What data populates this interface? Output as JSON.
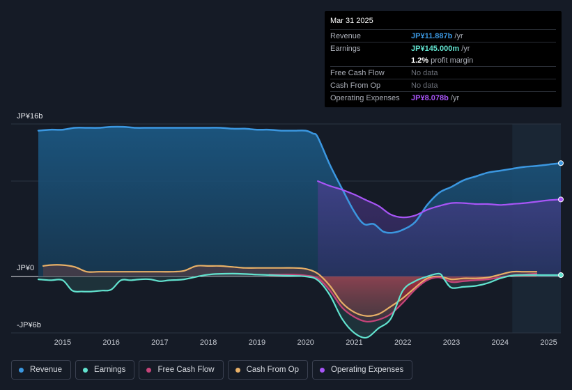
{
  "tooltip": {
    "date": "Mar 31 2025",
    "rows": [
      {
        "label": "Revenue",
        "value": "JP¥11.887b",
        "unit": "/yr",
        "color": "#3b97e0"
      },
      {
        "label": "Earnings",
        "value": "JP¥145.000m",
        "unit": "/yr",
        "color": "#62e3cf"
      },
      {
        "label": "",
        "value": "1.2%",
        "unit": "profit margin",
        "color": "#ffffff"
      },
      {
        "label": "Free Cash Flow",
        "value": "No data",
        "unit": "",
        "color": "#6b6f78"
      },
      {
        "label": "Cash From Op",
        "value": "No data",
        "unit": "",
        "color": "#6b6f78"
      },
      {
        "label": "Operating Expenses",
        "value": "JP¥8.078b",
        "unit": "/yr",
        "color": "#a855f7"
      }
    ]
  },
  "chart_data": {
    "type": "area",
    "title": "",
    "xlabel": "",
    "ylabel": "",
    "y_tick_labels": [
      "JP¥16b",
      "JP¥0",
      "-JP¥6b"
    ],
    "ylim": [
      -6,
      16
    ],
    "xlim": [
      2014.4,
      2025.25
    ],
    "x_ticks": [
      2015,
      2016,
      2017,
      2018,
      2019,
      2020,
      2021,
      2022,
      2023,
      2024,
      2025
    ],
    "x_tick_labels": [
      "2015",
      "2016",
      "2017",
      "2018",
      "2019",
      "2020",
      "2021",
      "2022",
      "2023",
      "2024",
      "2025"
    ],
    "highlight_from": 2024.25,
    "series": [
      {
        "name": "Revenue",
        "color": "#3b97e0",
        "x": [
          2014.5,
          2014.75,
          2015.0,
          2015.25,
          2015.5,
          2015.75,
          2016.0,
          2016.25,
          2016.5,
          2016.75,
          2017.0,
          2017.25,
          2017.5,
          2017.75,
          2018.0,
          2018.25,
          2018.5,
          2018.75,
          2019.0,
          2019.25,
          2019.5,
          2019.75,
          2020.0,
          2020.15,
          2020.25,
          2020.5,
          2020.75,
          2021.0,
          2021.2,
          2021.4,
          2021.6,
          2021.8,
          2022.0,
          2022.25,
          2022.5,
          2022.75,
          2023.0,
          2023.25,
          2023.5,
          2023.75,
          2024.0,
          2024.25,
          2024.5,
          2024.75,
          2025.0,
          2025.25
        ],
        "values": [
          15.3,
          15.4,
          15.4,
          15.6,
          15.6,
          15.6,
          15.7,
          15.7,
          15.6,
          15.6,
          15.6,
          15.6,
          15.6,
          15.6,
          15.6,
          15.6,
          15.5,
          15.5,
          15.4,
          15.4,
          15.3,
          15.3,
          15.3,
          15.0,
          14.6,
          11.7,
          9.2,
          6.8,
          5.5,
          5.5,
          4.7,
          4.6,
          4.9,
          5.7,
          7.5,
          8.8,
          9.4,
          10.1,
          10.5,
          10.9,
          11.1,
          11.3,
          11.5,
          11.6,
          11.75,
          11.887
        ]
      },
      {
        "name": "Earnings",
        "color": "#62e3cf",
        "x": [
          2014.5,
          2014.75,
          2015.0,
          2015.2,
          2015.4,
          2015.6,
          2015.8,
          2016.0,
          2016.2,
          2016.4,
          2016.6,
          2016.8,
          2017.0,
          2017.2,
          2017.5,
          2018.0,
          2018.5,
          2019.0,
          2019.5,
          2020.0,
          2020.25,
          2020.5,
          2020.75,
          2021.0,
          2021.25,
          2021.5,
          2021.75,
          2022.0,
          2022.25,
          2022.5,
          2022.75,
          2022.85,
          2023.0,
          2023.25,
          2023.5,
          2023.75,
          2024.0,
          2024.25,
          2024.5,
          2024.75,
          2025.0,
          2025.25
        ],
        "values": [
          -0.3,
          -0.4,
          -0.4,
          -1.5,
          -1.6,
          -1.6,
          -1.5,
          -1.4,
          -0.4,
          -0.4,
          -0.3,
          -0.3,
          -0.5,
          -0.4,
          -0.3,
          0.2,
          0.3,
          0.2,
          0.1,
          0.0,
          -0.4,
          -2.0,
          -4.5,
          -6.0,
          -6.5,
          -5.5,
          -4.5,
          -1.5,
          -0.5,
          0.0,
          0.3,
          -0.3,
          -1.2,
          -1.1,
          -1.0,
          -0.7,
          -0.2,
          0.1,
          0.15,
          0.15,
          0.145,
          0.145
        ]
      },
      {
        "name": "Free Cash Flow",
        "color": "#c6447a",
        "x": [
          2019.25,
          2019.5,
          2019.75,
          2020.0,
          2020.25,
          2020.5,
          2020.75,
          2021.0,
          2021.25,
          2021.5,
          2021.75,
          2022.0,
          2022.25,
          2022.5,
          2022.75,
          2023.0,
          2023.25,
          2023.5,
          2023.75,
          2024.0,
          2024.25,
          2024.5,
          2024.75
        ],
        "values": [
          0.2,
          0.2,
          0.2,
          0.1,
          -0.2,
          -1.5,
          -3.3,
          -4.3,
          -4.8,
          -4.6,
          -4.0,
          -2.8,
          -1.4,
          -0.4,
          -0.1,
          -0.6,
          -0.5,
          -0.4,
          -0.3,
          -0.1,
          0.1,
          0.2,
          0.3
        ]
      },
      {
        "name": "Cash From Op",
        "color": "#e8b067",
        "x": [
          2014.6,
          2014.75,
          2015.0,
          2015.25,
          2015.5,
          2015.75,
          2016.0,
          2016.5,
          2017.0,
          2017.25,
          2017.5,
          2017.75,
          2018.0,
          2018.25,
          2018.5,
          2018.75,
          2019.0,
          2019.5,
          2019.75,
          2020.0,
          2020.25,
          2020.5,
          2020.75,
          2021.0,
          2021.25,
          2021.5,
          2021.75,
          2022.0,
          2022.25,
          2022.5,
          2022.75,
          2023.0,
          2023.25,
          2023.5,
          2023.75,
          2024.0,
          2024.25,
          2024.5,
          2024.75
        ],
        "values": [
          1.1,
          1.2,
          1.2,
          1.0,
          0.5,
          0.5,
          0.5,
          0.5,
          0.5,
          0.5,
          0.6,
          1.1,
          1.1,
          1.1,
          1.0,
          0.9,
          0.9,
          0.9,
          0.9,
          0.8,
          0.3,
          -1.0,
          -2.8,
          -3.8,
          -4.2,
          -4.0,
          -3.2,
          -2.3,
          -1.2,
          -0.2,
          0.0,
          -0.3,
          -0.2,
          -0.2,
          -0.1,
          0.2,
          0.5,
          0.5,
          0.5
        ]
      },
      {
        "name": "Operating Expenses",
        "color": "#a855f7",
        "x": [
          2020.25,
          2020.5,
          2020.75,
          2021.0,
          2021.25,
          2021.5,
          2021.75,
          2022.0,
          2022.25,
          2022.5,
          2022.75,
          2023.0,
          2023.25,
          2023.5,
          2023.75,
          2024.0,
          2024.25,
          2024.5,
          2024.75,
          2025.0,
          2025.25
        ],
        "values": [
          10.0,
          9.5,
          9.1,
          8.6,
          8.0,
          7.4,
          6.5,
          6.2,
          6.4,
          7.0,
          7.4,
          7.7,
          7.7,
          7.6,
          7.6,
          7.5,
          7.6,
          7.7,
          7.85,
          8.0,
          8.078
        ]
      }
    ]
  },
  "legend": [
    {
      "label": "Revenue",
      "color": "#3b97e0"
    },
    {
      "label": "Earnings",
      "color": "#62e3cf"
    },
    {
      "label": "Free Cash Flow",
      "color": "#c6447a"
    },
    {
      "label": "Cash From Op",
      "color": "#e8b067"
    },
    {
      "label": "Operating Expenses",
      "color": "#a855f7"
    }
  ]
}
